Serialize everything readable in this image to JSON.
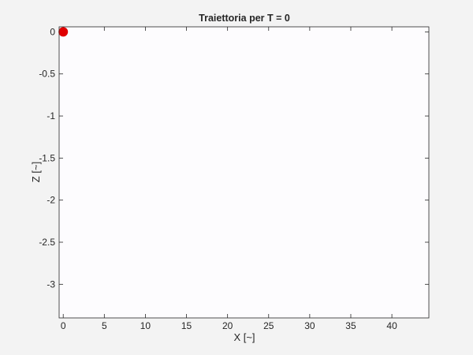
{
  "chart_data": {
    "type": "scatter",
    "title": "Traiettoria per T = 0",
    "xlabel": "X [~]",
    "ylabel": "Z [~]",
    "xlim": [
      -0.5,
      44.5
    ],
    "ylim": [
      -3.4,
      0.06
    ],
    "xticks": [
      0,
      5,
      10,
      15,
      20,
      25,
      30,
      35,
      40
    ],
    "yticks": [
      0,
      -0.5,
      -1,
      -1.5,
      -2,
      -2.5,
      -3
    ],
    "xtick_labels": [
      "0",
      "5",
      "10",
      "15",
      "20",
      "25",
      "30",
      "35",
      "40"
    ],
    "ytick_labels": [
      "0",
      "-0.5",
      "-1",
      "-1.5",
      "-2",
      "-2.5",
      "-3"
    ],
    "grid": false,
    "series": [
      {
        "x": [
          0
        ],
        "y": [
          0
        ],
        "color": "#e00000",
        "marker": "filled-circle"
      }
    ]
  },
  "colors": {
    "figure_background": "#f3f3f3",
    "axes_background": "#fdfcfe",
    "axes_line": "#262626",
    "marker": "#e00000"
  }
}
